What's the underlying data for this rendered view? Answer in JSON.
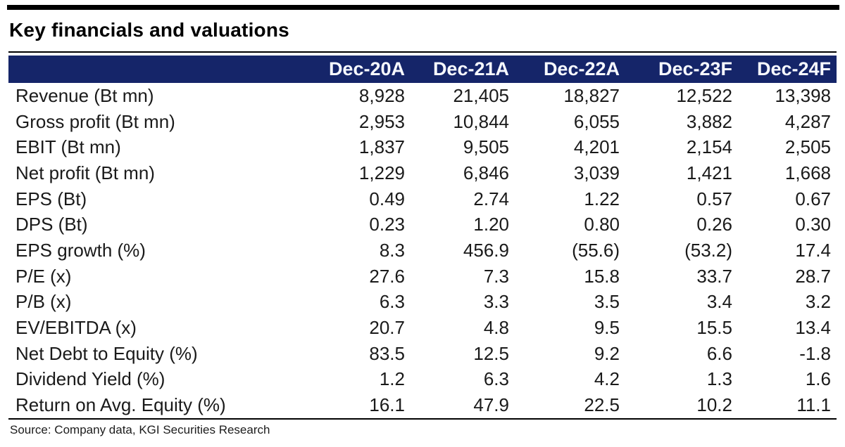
{
  "title": "Key financials and valuations",
  "source": "Source: Company data, KGI Securities Research",
  "colors": {
    "header_bg": "#152569",
    "header_text": "#ffffff",
    "rule": "#000000",
    "body_text": "#1a1a1a"
  },
  "chart_data": {
    "type": "table",
    "title": "Key financials and valuations",
    "columns": [
      "",
      "Dec-20A",
      "Dec-21A",
      "Dec-22A",
      "Dec-23F",
      "Dec-24F"
    ],
    "rows": [
      {
        "label": "Revenue (Bt mn)",
        "values": [
          "8,928",
          "21,405",
          "18,827",
          "12,522",
          "13,398"
        ]
      },
      {
        "label": "Gross profit (Bt mn)",
        "values": [
          "2,953",
          "10,844",
          "6,055",
          "3,882",
          "4,287"
        ]
      },
      {
        "label": "EBIT (Bt mn)",
        "values": [
          "1,837",
          "9,505",
          "4,201",
          "2,154",
          "2,505"
        ]
      },
      {
        "label": "Net profit (Bt mn)",
        "values": [
          "1,229",
          "6,846",
          "3,039",
          "1,421",
          "1,668"
        ]
      },
      {
        "label": "EPS (Bt)",
        "values": [
          "0.49",
          "2.74",
          "1.22",
          "0.57",
          "0.67"
        ]
      },
      {
        "label": "DPS (Bt)",
        "values": [
          "0.23",
          "1.20",
          "0.80",
          "0.26",
          "0.30"
        ]
      },
      {
        "label": "EPS growth (%)",
        "values": [
          "8.3",
          "456.9",
          "(55.6)",
          "(53.2)",
          "17.4"
        ]
      },
      {
        "label": "P/E (x)",
        "values": [
          "27.6",
          "7.3",
          "15.8",
          "33.7",
          "28.7"
        ]
      },
      {
        "label": "P/B (x)",
        "values": [
          "6.3",
          "3.3",
          "3.5",
          "3.4",
          "3.2"
        ]
      },
      {
        "label": "EV/EBITDA (x)",
        "values": [
          "20.7",
          "4.8",
          "9.5",
          "15.5",
          "13.4"
        ]
      },
      {
        "label": "Net Debt to Equity (%)",
        "values": [
          "83.5",
          "12.5",
          "9.2",
          "6.6",
          "-1.8"
        ]
      },
      {
        "label": "Dividend Yield (%)",
        "values": [
          "1.2",
          "6.3",
          "4.2",
          "1.3",
          "1.6"
        ]
      },
      {
        "label": "Return on Avg. Equity (%)",
        "values": [
          "16.1",
          "47.9",
          "22.5",
          "10.2",
          "11.1"
        ]
      }
    ]
  }
}
